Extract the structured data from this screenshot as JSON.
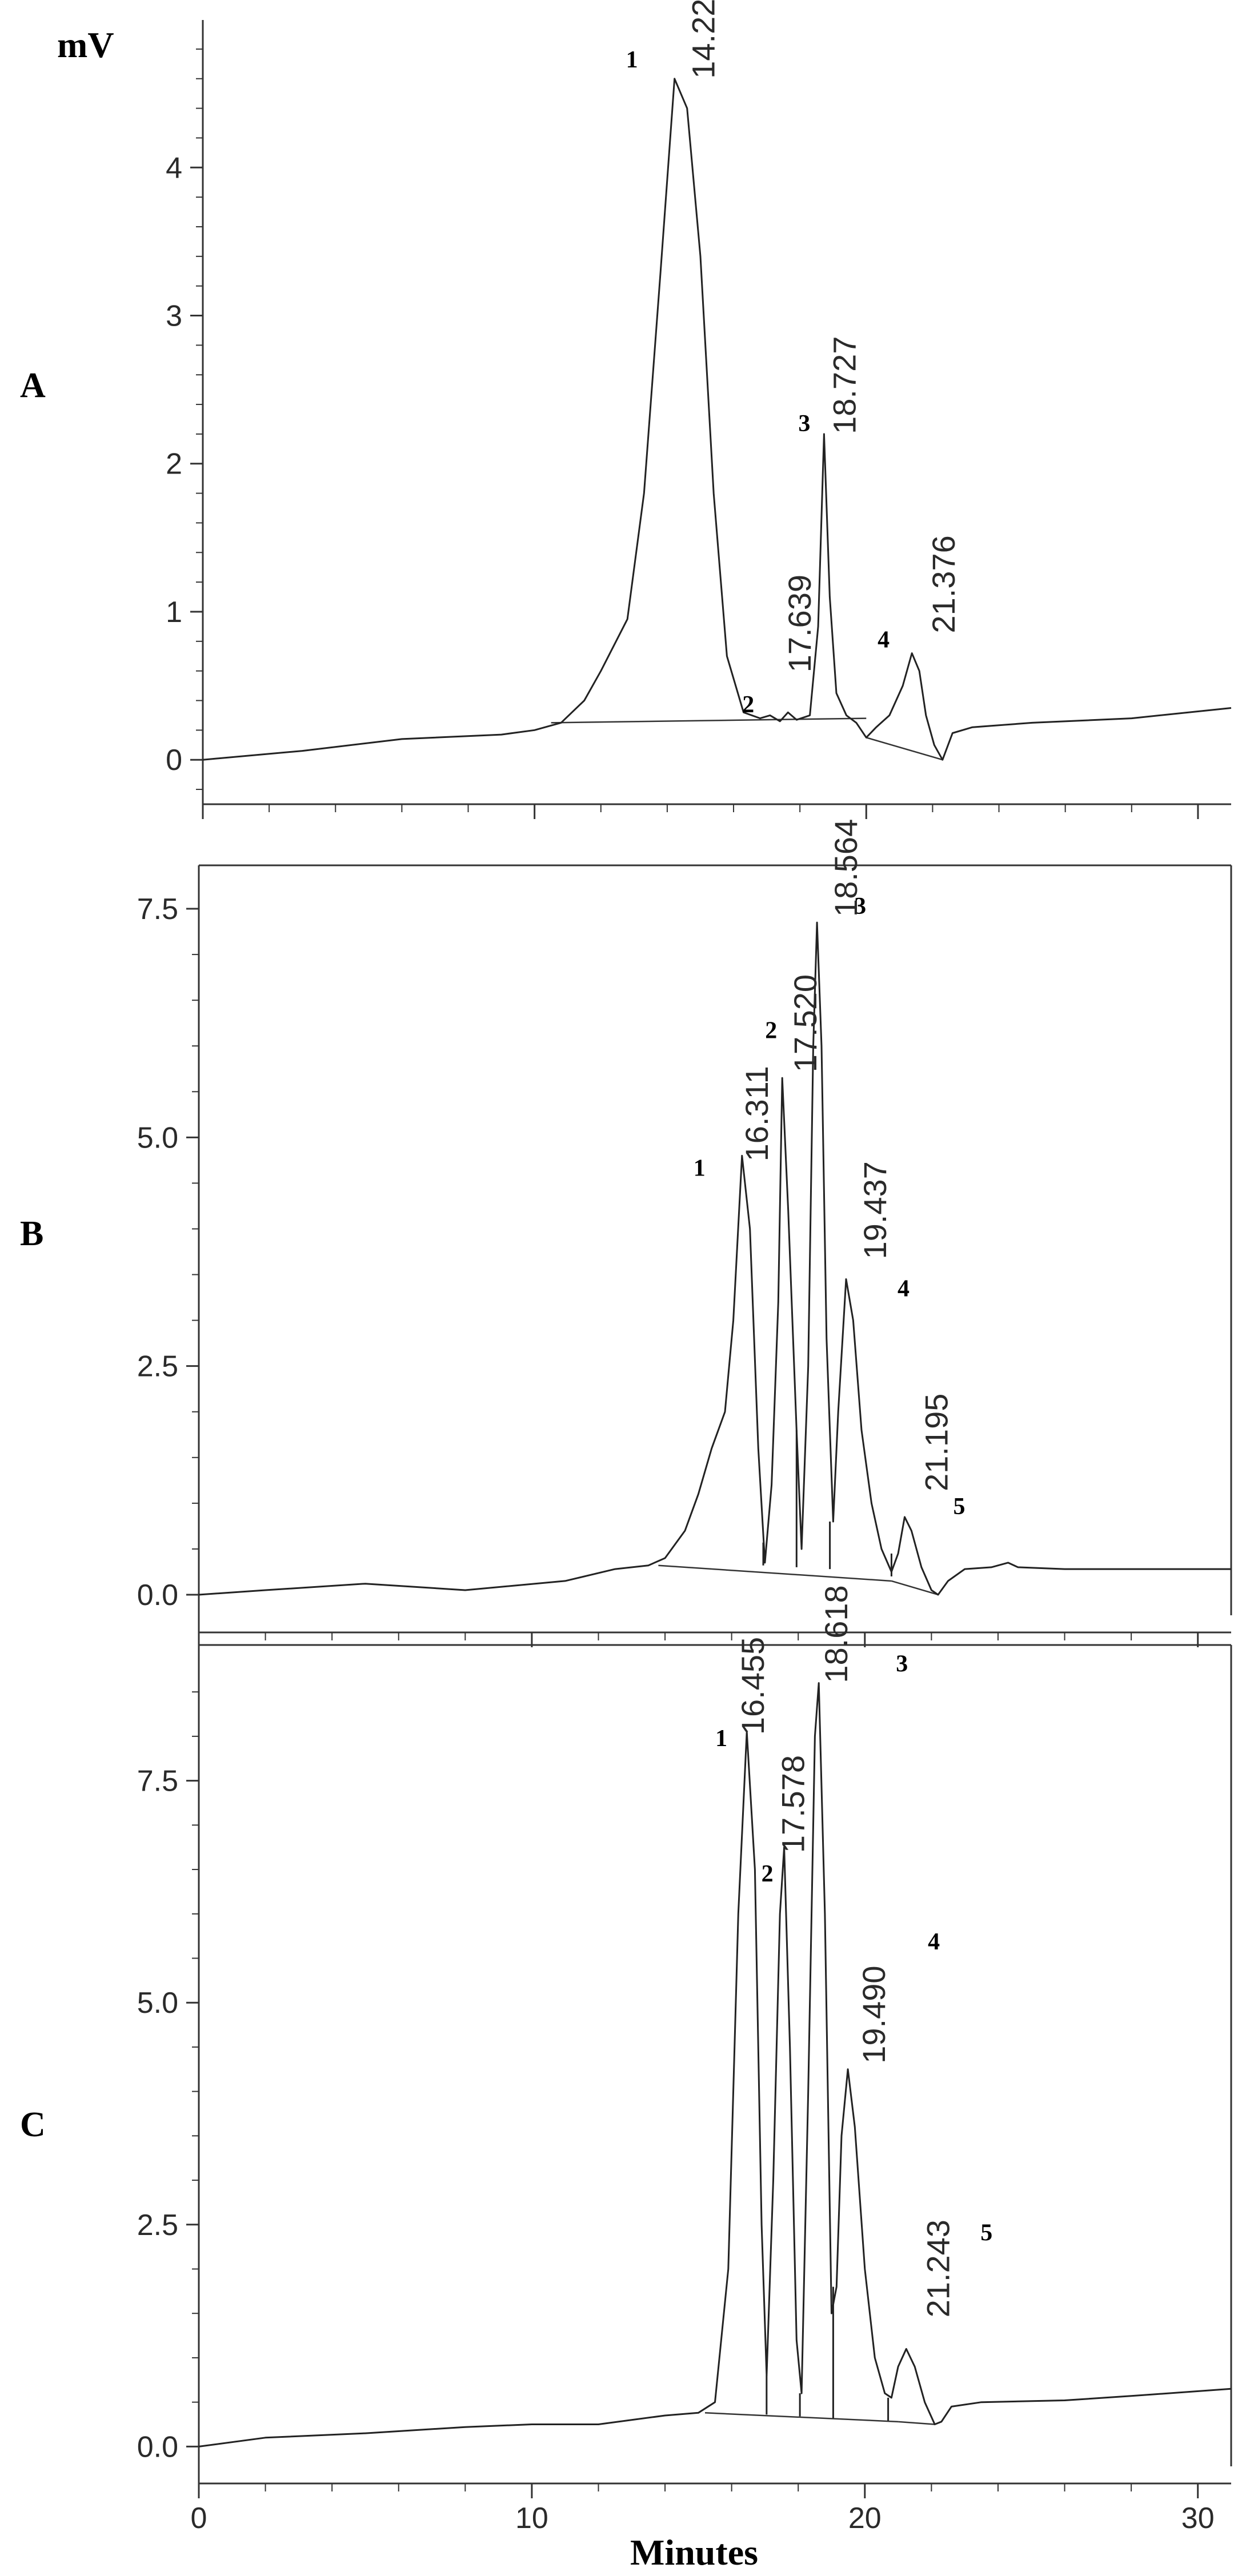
{
  "y_unit": "mV",
  "x_label": "Minutes",
  "x_ticks": [
    "0",
    "10",
    "20",
    "30"
  ],
  "chart_data": [
    {
      "type": "line",
      "panel": "A",
      "ylim": [
        -0.25,
        4.9
      ],
      "xlim": [
        0,
        31
      ],
      "y_ticks": [
        "0",
        "1",
        "2",
        "3",
        "4"
      ],
      "y_tick_values": [
        0,
        1,
        2,
        3,
        4
      ],
      "peaks": [
        {
          "number": "1",
          "rt": "14.220",
          "height": 4.6
        },
        {
          "number": "2",
          "rt": "17.639",
          "height": 0.32
        },
        {
          "number": "3",
          "rt": "18.727",
          "height": 2.2
        },
        {
          "number": "4",
          "rt": "21.376",
          "height": 0.72
        }
      ],
      "trace": [
        [
          0,
          0
        ],
        [
          3,
          0.06
        ],
        [
          6,
          0.14
        ],
        [
          9,
          0.17
        ],
        [
          10,
          0.2
        ],
        [
          10.8,
          0.25
        ],
        [
          11.5,
          0.4
        ],
        [
          12,
          0.6
        ],
        [
          12.8,
          0.95
        ],
        [
          13.3,
          1.8
        ],
        [
          13.8,
          3.3
        ],
        [
          14.22,
          4.6
        ],
        [
          14.6,
          4.4
        ],
        [
          15,
          3.4
        ],
        [
          15.4,
          1.8
        ],
        [
          15.8,
          0.7
        ],
        [
          16.3,
          0.32
        ],
        [
          16.8,
          0.28
        ],
        [
          17.1,
          0.3
        ],
        [
          17.4,
          0.26
        ],
        [
          17.64,
          0.32
        ],
        [
          17.9,
          0.27
        ],
        [
          18.3,
          0.3
        ],
        [
          18.55,
          0.9
        ],
        [
          18.727,
          2.2
        ],
        [
          18.9,
          1.1
        ],
        [
          19.1,
          0.45
        ],
        [
          19.4,
          0.3
        ],
        [
          19.7,
          0.25
        ],
        [
          20,
          0.15
        ],
        [
          20.3,
          0.22
        ],
        [
          20.7,
          0.3
        ],
        [
          21.1,
          0.5
        ],
        [
          21.376,
          0.72
        ],
        [
          21.6,
          0.6
        ],
        [
          21.8,
          0.3
        ],
        [
          22.05,
          0.1
        ],
        [
          22.3,
          0.0
        ],
        [
          22.6,
          0.18
        ],
        [
          23.2,
          0.22
        ],
        [
          25,
          0.25
        ],
        [
          28,
          0.28
        ],
        [
          31,
          0.35
        ]
      ],
      "baselines": [
        [
          [
            10.5,
            0.25
          ],
          [
            20,
            0.28
          ]
        ],
        [
          [
            20,
            0.15
          ],
          [
            22.3,
            0.0
          ]
        ]
      ]
    },
    {
      "type": "line",
      "panel": "B",
      "ylim": [
        -0.3,
        7.85
      ],
      "xlim": [
        0,
        31
      ],
      "y_ticks": [
        "0.0",
        "2.5",
        "5.0",
        "7.5"
      ],
      "y_tick_values": [
        0,
        2.5,
        5,
        7.5
      ],
      "peaks": [
        {
          "number": "1",
          "rt": "16.311",
          "height": 4.8
        },
        {
          "number": "2",
          "rt": "17.520",
          "height": 5.65
        },
        {
          "number": "3",
          "rt": "18.564",
          "height": 7.35
        },
        {
          "number": "4",
          "rt": "19.437",
          "height": 3.45
        },
        {
          "number": "5",
          "rt": "21.195",
          "height": 0.85
        }
      ],
      "trace": [
        [
          0,
          0
        ],
        [
          2,
          0.05
        ],
        [
          5,
          0.12
        ],
        [
          8,
          0.05
        ],
        [
          11,
          0.15
        ],
        [
          12.5,
          0.28
        ],
        [
          13.5,
          0.32
        ],
        [
          14,
          0.4
        ],
        [
          14.6,
          0.7
        ],
        [
          15,
          1.1
        ],
        [
          15.4,
          1.6
        ],
        [
          15.8,
          2.0
        ],
        [
          16.05,
          3.0
        ],
        [
          16.311,
          4.8
        ],
        [
          16.55,
          4.0
        ],
        [
          16.8,
          1.6
        ],
        [
          17.0,
          0.35
        ],
        [
          17.2,
          1.2
        ],
        [
          17.4,
          3.2
        ],
        [
          17.52,
          5.65
        ],
        [
          17.7,
          4.2
        ],
        [
          17.95,
          1.8
        ],
        [
          18.1,
          0.5
        ],
        [
          18.3,
          2.5
        ],
        [
          18.45,
          6.0
        ],
        [
          18.564,
          7.35
        ],
        [
          18.7,
          6.0
        ],
        [
          18.85,
          2.8
        ],
        [
          19.05,
          0.8
        ],
        [
          19.2,
          2.0
        ],
        [
          19.437,
          3.45
        ],
        [
          19.65,
          3.0
        ],
        [
          19.9,
          1.8
        ],
        [
          20.2,
          1.0
        ],
        [
          20.5,
          0.5
        ],
        [
          20.8,
          0.25
        ],
        [
          21.0,
          0.45
        ],
        [
          21.195,
          0.85
        ],
        [
          21.4,
          0.7
        ],
        [
          21.7,
          0.3
        ],
        [
          22.0,
          0.05
        ],
        [
          22.2,
          0.0
        ],
        [
          22.5,
          0.15
        ],
        [
          23.0,
          0.28
        ],
        [
          23.8,
          0.3
        ],
        [
          24.3,
          0.35
        ],
        [
          24.6,
          0.3
        ],
        [
          26,
          0.28
        ],
        [
          31,
          0.28
        ]
      ],
      "baselines": [
        [
          [
            13.8,
            0.32
          ],
          [
            20.8,
            0.15
          ]
        ],
        [
          [
            20.8,
            0.15
          ],
          [
            22.2,
            0.0
          ]
        ]
      ],
      "drops": [
        [
          16.95,
          0.32
        ],
        [
          17.95,
          0.3
        ],
        [
          18.95,
          0.28
        ],
        [
          20.8,
          0.2
        ]
      ]
    },
    {
      "type": "line",
      "panel": "C",
      "ylim": [
        -0.3,
        8.9
      ],
      "xlim": [
        0,
        31
      ],
      "y_ticks": [
        "0.0",
        "2.5",
        "5.0",
        "7.5"
      ],
      "y_tick_values": [
        0,
        2.5,
        5,
        7.5
      ],
      "peaks": [
        {
          "number": "1",
          "rt": "16.455",
          "height": 8.05
        },
        {
          "number": "2",
          "rt": "17.578",
          "height": 6.75
        },
        {
          "number": "3",
          "rt": "18.618",
          "height": 8.6
        },
        {
          "number": "4",
          "rt": "19.490",
          "height": 4.25
        },
        {
          "number": "5",
          "rt": "21.243",
          "height": 1.1
        }
      ],
      "trace": [
        [
          0,
          0
        ],
        [
          2,
          0.1
        ],
        [
          5,
          0.15
        ],
        [
          8,
          0.22
        ],
        [
          10,
          0.25
        ],
        [
          12,
          0.25
        ],
        [
          14,
          0.35
        ],
        [
          15,
          0.38
        ],
        [
          15.5,
          0.5
        ],
        [
          15.9,
          2.0
        ],
        [
          16.2,
          6.0
        ],
        [
          16.455,
          8.05
        ],
        [
          16.7,
          6.5
        ],
        [
          16.9,
          2.5
        ],
        [
          17.05,
          0.8
        ],
        [
          17.25,
          3.0
        ],
        [
          17.45,
          6.0
        ],
        [
          17.578,
          6.75
        ],
        [
          17.75,
          4.5
        ],
        [
          17.95,
          1.2
        ],
        [
          18.1,
          0.6
        ],
        [
          18.3,
          4.0
        ],
        [
          18.5,
          8.0
        ],
        [
          18.618,
          8.6
        ],
        [
          18.8,
          6.0
        ],
        [
          19.0,
          1.5
        ],
        [
          19.15,
          1.8
        ],
        [
          19.3,
          3.5
        ],
        [
          19.49,
          4.25
        ],
        [
          19.7,
          3.6
        ],
        [
          20.0,
          2.0
        ],
        [
          20.3,
          1.0
        ],
        [
          20.6,
          0.6
        ],
        [
          20.8,
          0.55
        ],
        [
          21.0,
          0.9
        ],
        [
          21.243,
          1.1
        ],
        [
          21.5,
          0.9
        ],
        [
          21.8,
          0.5
        ],
        [
          22.1,
          0.25
        ],
        [
          22.3,
          0.28
        ],
        [
          22.6,
          0.45
        ],
        [
          23.5,
          0.5
        ],
        [
          26,
          0.52
        ],
        [
          28,
          0.57
        ],
        [
          31,
          0.65
        ]
      ],
      "baselines": [
        [
          [
            15.2,
            0.38
          ],
          [
            21.0,
            0.28
          ]
        ],
        [
          [
            21.0,
            0.28
          ],
          [
            22.1,
            0.25
          ]
        ]
      ],
      "drops": [
        [
          17.05,
          0.36
        ],
        [
          18.05,
          0.34
        ],
        [
          19.05,
          0.32
        ],
        [
          20.7,
          0.29
        ]
      ]
    }
  ]
}
